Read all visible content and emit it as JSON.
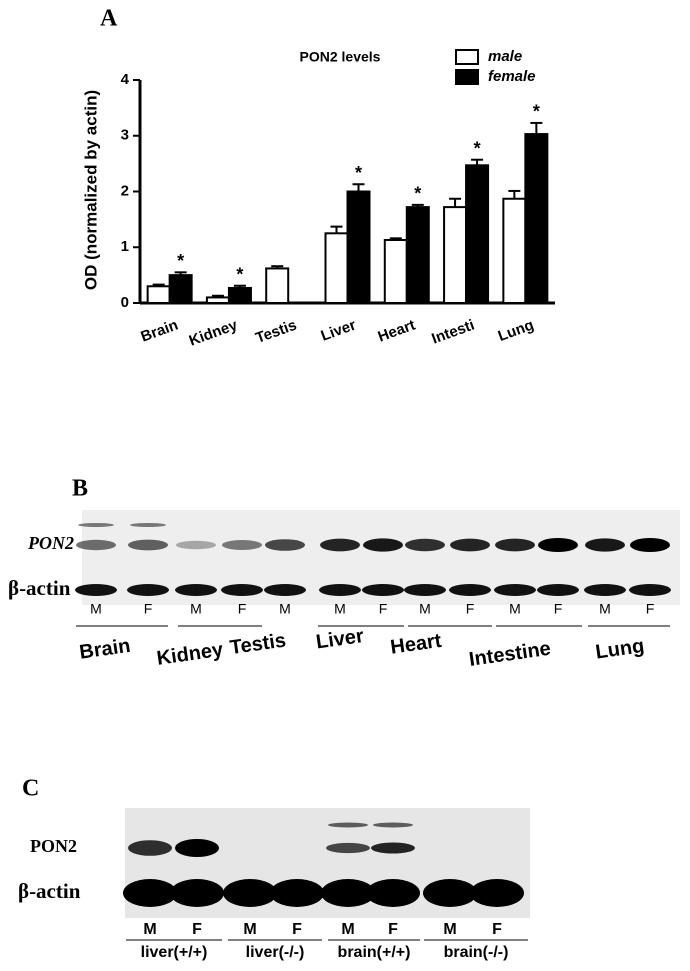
{
  "chart_data": {
    "type": "bar",
    "panel": "A",
    "title": "PON2 levels",
    "ylabel": "OD (normalized by actin)",
    "categories": [
      "Brain",
      "Kidney",
      "Testis",
      "Liver",
      "Heart",
      "Intesti",
      "Lung"
    ],
    "series": [
      {
        "name": "male",
        "color": "#ffffff",
        "values": [
          0.3,
          0.1,
          0.62,
          1.25,
          1.13,
          1.72,
          1.87
        ],
        "errors": [
          0.03,
          0.03,
          0.04,
          0.12,
          0.03,
          0.15,
          0.14
        ]
      },
      {
        "name": "female",
        "color": "#000000",
        "values": [
          0.5,
          0.27,
          null,
          2.0,
          1.72,
          2.47,
          3.03
        ],
        "errors": [
          0.05,
          0.04,
          null,
          0.13,
          0.04,
          0.1,
          0.2
        ]
      }
    ],
    "significance": [
      "*",
      "*",
      null,
      "*",
      "*",
      "*",
      "*"
    ],
    "ylim": [
      0,
      4
    ],
    "yticks": [
      0,
      1,
      2,
      3,
      4
    ],
    "legend": "top-right"
  },
  "panel_b": {
    "label": "B",
    "rows": [
      "PON2",
      "β-actin"
    ],
    "lanes": [
      "M",
      "F",
      "M",
      "F",
      "M",
      "M",
      "F",
      "M",
      "F",
      "M",
      "F",
      "M",
      "F"
    ],
    "groups": [
      "Brain",
      "Kidney",
      "Testis",
      "Liver",
      "Heart",
      "Intestine",
      "Lung"
    ]
  },
  "panel_c": {
    "label": "C",
    "rows": [
      "PON2",
      "β-actin"
    ],
    "lanes": [
      "M",
      "F",
      "M",
      "F",
      "M",
      "F",
      "M",
      "F"
    ],
    "groups": [
      "liver(+/+)",
      "liver(-/-)",
      "brain(+/+)",
      "brain(-/-)"
    ]
  }
}
